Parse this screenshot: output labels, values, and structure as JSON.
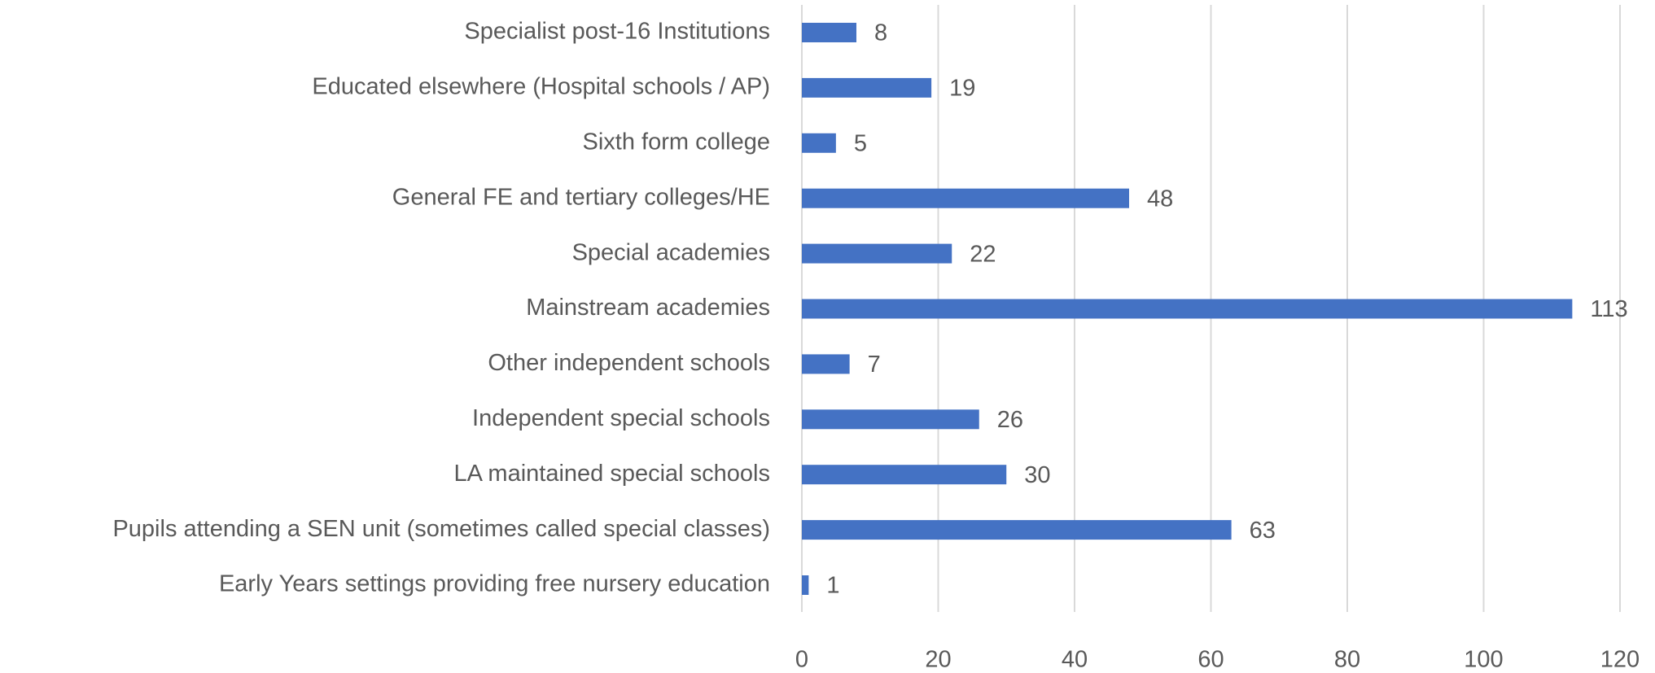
{
  "chart_data": {
    "type": "bar",
    "orientation": "horizontal",
    "categories": [
      "Specialist post-16 Institutions",
      "Educated elsewhere (Hospital schools / AP)",
      "Sixth form college",
      "General FE and tertiary colleges/HE",
      "Special academies",
      "Mainstream academies",
      "Other independent schools",
      "Independent special schools",
      "LA maintained special schools",
      "Pupils attending a SEN unit (sometimes called special classes)",
      "Early Years settings providing free nursery education"
    ],
    "values": [
      8,
      19,
      5,
      48,
      22,
      113,
      7,
      26,
      30,
      63,
      1
    ],
    "color": "#4472c4",
    "xlim": [
      0,
      120
    ],
    "xticks": [
      0,
      20,
      40,
      60,
      80,
      100,
      120
    ],
    "grid": true
  }
}
